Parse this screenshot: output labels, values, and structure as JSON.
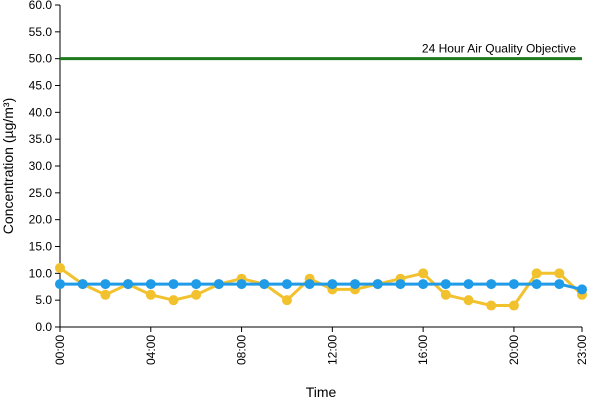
{
  "chart_data": {
    "type": "line",
    "xlabel": "Time",
    "ylabel": "Concentration (µg/m³)",
    "ylim": [
      0,
      60
    ],
    "y_ticks": [
      "0.0",
      "5.0",
      "10.0",
      "15.0",
      "20.0",
      "25.0",
      "30.0",
      "35.0",
      "40.0",
      "45.0",
      "50.0",
      "55.0",
      "60.0"
    ],
    "x": [
      "00:00",
      "01:00",
      "02:00",
      "03:00",
      "04:00",
      "05:00",
      "06:00",
      "07:00",
      "08:00",
      "09:00",
      "10:00",
      "11:00",
      "12:00",
      "13:00",
      "14:00",
      "15:00",
      "16:00",
      "17:00",
      "18:00",
      "19:00",
      "20:00",
      "21:00",
      "22:00",
      "23:00"
    ],
    "x_tick_labels": [
      "00:00",
      "04:00",
      "08:00",
      "12:00",
      "16:00",
      "20:00",
      "23:00"
    ],
    "grid": false,
    "series": [
      {
        "color": "#f2c12e",
        "marker": "circle",
        "values": [
          11,
          8,
          6,
          8,
          6,
          5,
          6,
          8,
          9,
          8,
          5,
          9,
          7,
          7,
          8,
          9,
          10,
          6,
          5,
          4,
          4,
          10,
          10,
          6
        ]
      },
      {
        "color": "#1f9be8",
        "marker": "circle",
        "values": [
          8,
          8,
          8,
          8,
          8,
          8,
          8,
          8,
          8,
          8,
          8,
          8,
          8,
          8,
          8,
          8,
          8,
          8,
          8,
          8,
          8,
          8,
          8,
          7
        ]
      }
    ],
    "reference_lines": [
      {
        "value": 50,
        "label": "24 Hour Air Quality Objective",
        "color": "#1e7a1e"
      }
    ]
  }
}
